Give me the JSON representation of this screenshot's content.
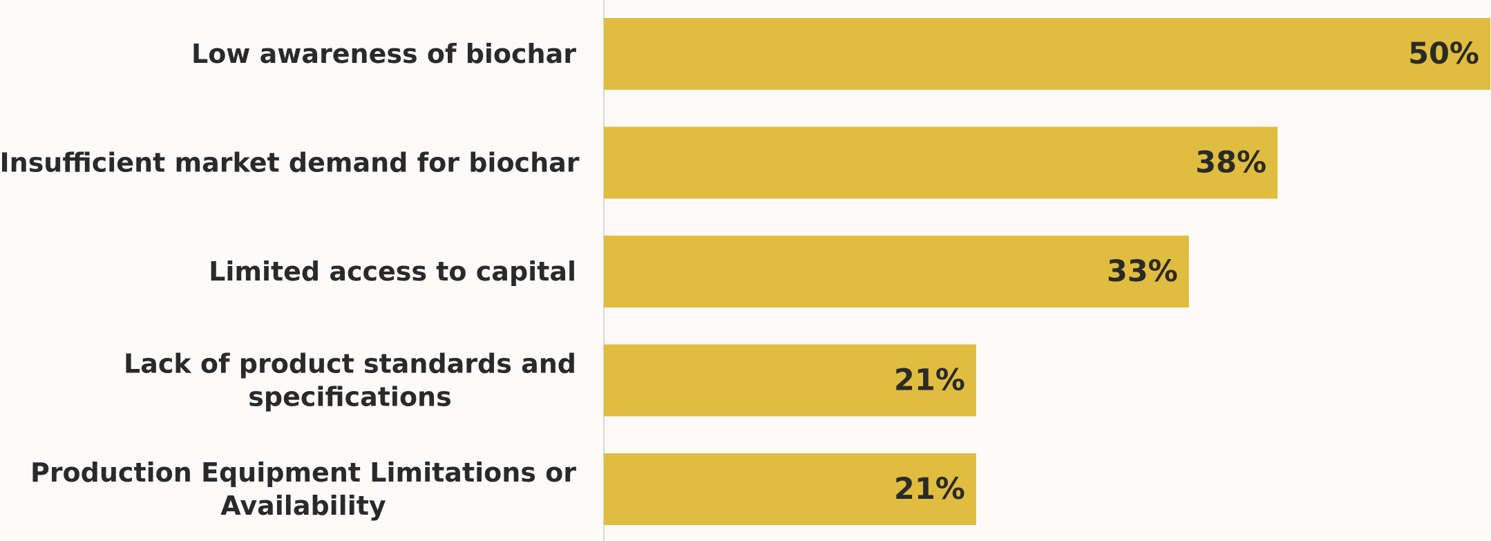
{
  "chart_data": {
    "type": "bar",
    "orientation": "horizontal",
    "categories": [
      [
        "Low awareness of biochar"
      ],
      [
        "Insufficient market demand for biochar"
      ],
      [
        "Limited access to capital"
      ],
      [
        "Lack of product standards and",
        "specifications"
      ],
      [
        "Production Equipment Limitations or",
        "Availability"
      ]
    ],
    "values": [
      50,
      38,
      33,
      21,
      21
    ],
    "value_labels": [
      "50%",
      "38%",
      "33%",
      "21%",
      "21%"
    ],
    "xlim": [
      0,
      50
    ],
    "title": "",
    "xlabel": "",
    "ylabel": "",
    "grid": false,
    "legend": "none",
    "colors": {
      "bar": "#e0bd3f",
      "text": "#2b2a2a",
      "axis": "#d6d6d6",
      "background": "#fcfbf9"
    }
  }
}
